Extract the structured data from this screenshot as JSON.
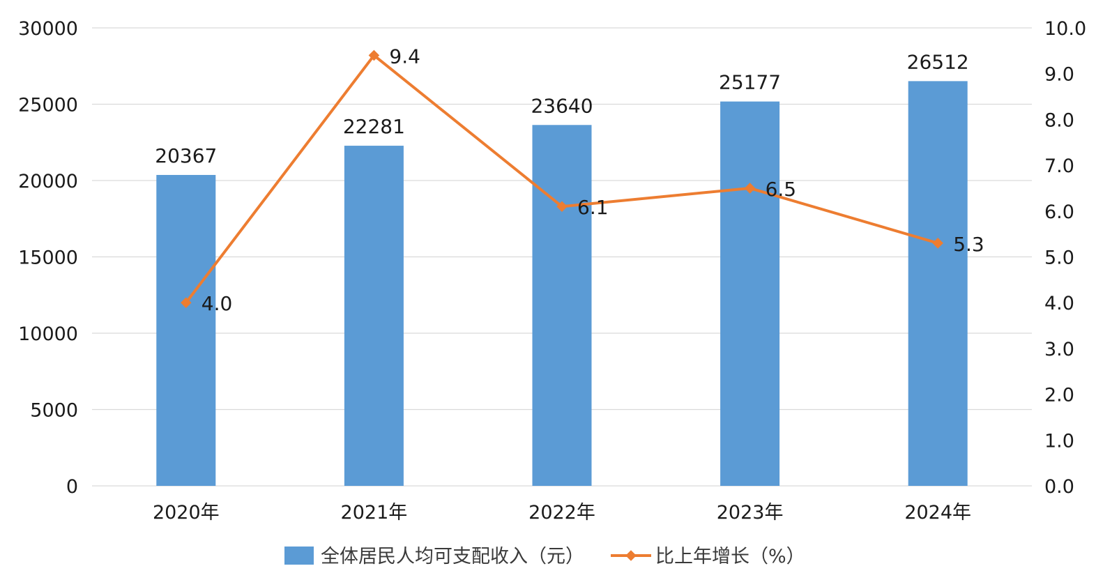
{
  "chart_data": {
    "type": "bar",
    "categories": [
      "2020年",
      "2021年",
      "2022年",
      "2023年",
      "2024年"
    ],
    "series": [
      {
        "name": "全体居民人均可支配收入（元）",
        "type": "bar",
        "axis": "left",
        "color": "#5b9bd5",
        "values": [
          20367,
          22281,
          23640,
          25177,
          26512
        ],
        "labels": [
          "20367",
          "22281",
          "23640",
          "25177",
          "26512"
        ]
      },
      {
        "name": "比上年增长（%）",
        "type": "line",
        "axis": "right",
        "color": "#ed7d31",
        "values": [
          4.0,
          9.4,
          6.1,
          6.5,
          5.3
        ],
        "labels": [
          "4.0",
          "9.4",
          "6.1",
          "6.5",
          "5.3"
        ]
      }
    ],
    "y_left": {
      "range": [
        0,
        30000
      ],
      "ticks": [
        0,
        5000,
        10000,
        15000,
        20000,
        25000,
        30000
      ],
      "tick_labels": [
        "0",
        "5000",
        "10000",
        "15000",
        "20000",
        "25000",
        "30000"
      ]
    },
    "y_right": {
      "range": [
        0,
        10
      ],
      "ticks": [
        0,
        1,
        2,
        3,
        4,
        5,
        6,
        7,
        8,
        9,
        10
      ],
      "tick_labels": [
        "0.0",
        "1.0",
        "2.0",
        "3.0",
        "4.0",
        "5.0",
        "6.0",
        "7.0",
        "8.0",
        "9.0",
        "10.0"
      ]
    },
    "grid": true,
    "legend": "bottom-center"
  }
}
